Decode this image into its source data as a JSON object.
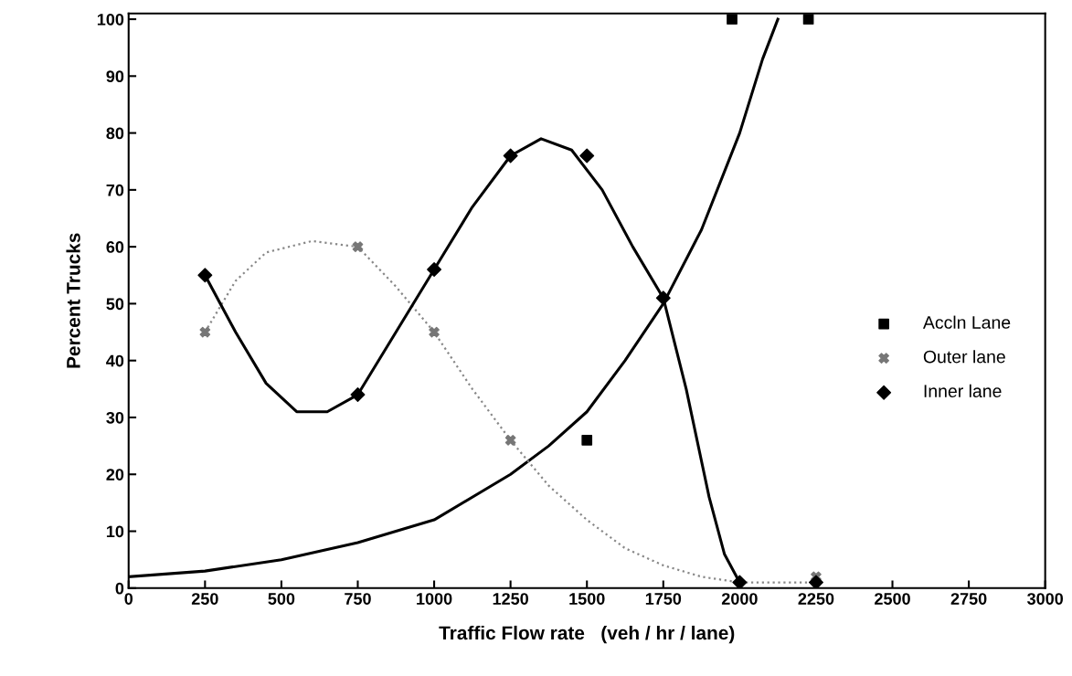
{
  "chart_data": {
    "type": "line",
    "xlabel": "Traffic Flow rate   (veh / hr / lane)",
    "ylabel": "Percent Trucks",
    "xlim": [
      0,
      3000
    ],
    "xticks": [
      0,
      250,
      500,
      750,
      1000,
      1250,
      1500,
      1750,
      2000,
      2250,
      2500,
      2750,
      3000
    ],
    "ylim": [
      0,
      101
    ],
    "yticks": [
      0,
      10,
      20,
      30,
      40,
      50,
      60,
      70,
      80,
      90,
      100
    ],
    "grid": false,
    "legend": "right",
    "series": [
      {
        "name": "Accln Lane",
        "type": "scatter",
        "marker": "square",
        "color": "#000000",
        "x": [
          1500,
          1975,
          2225
        ],
        "values": [
          26,
          100,
          100
        ]
      },
      {
        "name": "Outer lane",
        "type": "scatter",
        "marker": "cross",
        "color": "#777777",
        "x": [
          250,
          750,
          1000,
          1250,
          2000,
          2250
        ],
        "values": [
          45,
          60,
          45,
          26,
          null,
          2
        ]
      },
      {
        "name": "Inner lane",
        "type": "scatter",
        "marker": "diamond",
        "color": "#000000",
        "x": [
          250,
          750,
          1000,
          1250,
          1500,
          1750,
          2000,
          2250
        ],
        "values": [
          55,
          34,
          56,
          76,
          76,
          51,
          1,
          1
        ]
      },
      {
        "line_style": "solid",
        "color": "#000000",
        "x": [
          0,
          250,
          500,
          750,
          1000,
          1250,
          1375,
          1500,
          1625,
          1750,
          1875,
          2000,
          2075,
          2125
        ],
        "values": [
          2,
          3,
          5,
          8,
          12,
          20,
          25,
          31,
          40,
          50,
          63,
          80,
          93,
          100
        ]
      },
      {
        "line_style": "dotted",
        "color": "#888888",
        "x": [
          250,
          350,
          450,
          600,
          750,
          875,
          1000,
          1125,
          1250,
          1375,
          1500,
          1625,
          1750,
          1875,
          2000,
          2250
        ],
        "values": [
          45,
          54,
          59,
          61,
          60,
          53,
          45,
          35,
          26,
          18,
          12,
          7,
          4,
          2,
          1,
          1
        ]
      },
      {
        "line_style": "solid",
        "color": "#000000",
        "x": [
          250,
          350,
          450,
          550,
          650,
          750,
          875,
          1000,
          1125,
          1250,
          1350,
          1450,
          1550,
          1650,
          1750,
          1825,
          1900,
          1950,
          2000
        ],
        "values": [
          55,
          45,
          36,
          31,
          31,
          34,
          45,
          56,
          67,
          76,
          79,
          77,
          70,
          60,
          51,
          35,
          16,
          6,
          1
        ]
      }
    ]
  }
}
